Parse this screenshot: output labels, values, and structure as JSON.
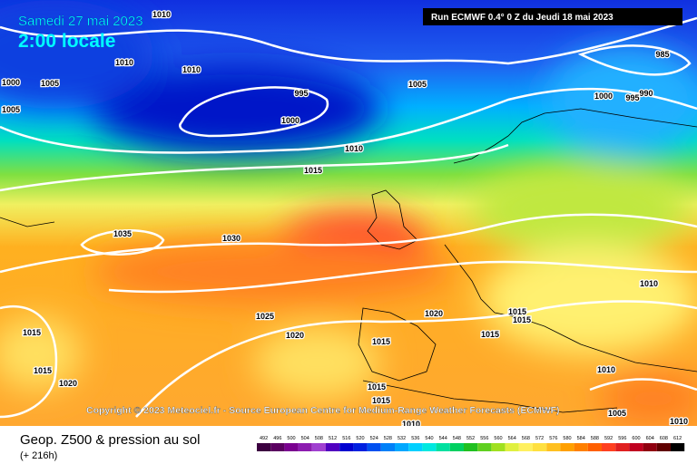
{
  "header": {
    "date": "Samedi 27 mai 2023",
    "time": "2:00 locale",
    "run": "Run ECMWF 0.4° 0 Z du Jeudi 18 mai 2023"
  },
  "isobar_labels": [
    1010,
    1010,
    1010,
    1000,
    1005,
    1005,
    995,
    1000,
    1005,
    1010,
    1015,
    985,
    990,
    1000,
    995,
    1035,
    1030,
    1025,
    1020,
    1020,
    1015,
    1015,
    1020,
    1015,
    1015,
    1015,
    1015,
    1015,
    1015,
    1010,
    1010,
    1005,
    1010,
    1010
  ],
  "copyright": "Copyright © 2023 Meteociel.fr - Source European Centre for Medium-Range Weather Forecasts (ECMWF)",
  "footer": {
    "title": "Geop. Z500 & pression au sol",
    "lead": "(+ 216h)"
  },
  "scale": {
    "labels": [
      492,
      496,
      500,
      504,
      508,
      512,
      516,
      520,
      524,
      528,
      532,
      536,
      540,
      544,
      548,
      552,
      556,
      560,
      564,
      568,
      572,
      576,
      580,
      584,
      588,
      592,
      596,
      600,
      604,
      608,
      612
    ],
    "colors": [
      "#3c0040",
      "#5a0060",
      "#7a0090",
      "#8c1cb0",
      "#a040d0",
      "#5000c0",
      "#0000d0",
      "#0020e0",
      "#0050f0",
      "#0080f8",
      "#00a8ff",
      "#00d0ff",
      "#00e8e0",
      "#00e0a0",
      "#00d060",
      "#20c020",
      "#60d020",
      "#a0e020",
      "#e0f040",
      "#fff060",
      "#ffe040",
      "#ffc020",
      "#ffa000",
      "#ff8000",
      "#ff6000",
      "#ff4020",
      "#e02020",
      "#c00020",
      "#900010",
      "#600000",
      "#000000"
    ]
  }
}
